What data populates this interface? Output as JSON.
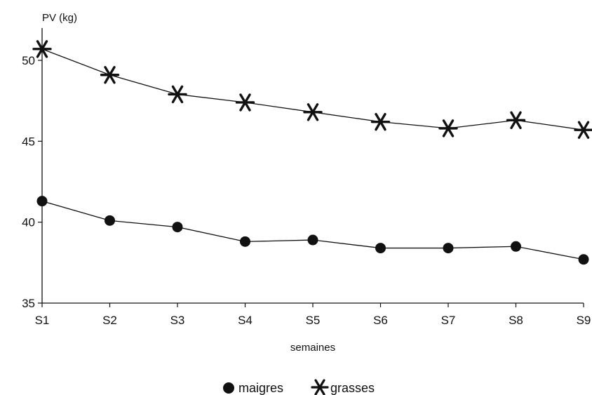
{
  "chart_data": {
    "type": "line",
    "title": "",
    "ylabel": "PV (kg)",
    "xlabel": "semaines",
    "categories": [
      "S1",
      "S2",
      "S3",
      "S4",
      "S5",
      "S6",
      "S7",
      "S8",
      "S9"
    ],
    "ylim": [
      35,
      52
    ],
    "yticks": [
      35,
      40,
      45,
      50
    ],
    "grid": false,
    "legend_position": "bottom-center",
    "series": [
      {
        "name": "maigres",
        "marker": "circle",
        "values": [
          41.3,
          40.1,
          39.7,
          38.8,
          38.9,
          38.4,
          38.4,
          38.5,
          37.7
        ],
        "color": "#111111"
      },
      {
        "name": "grasses",
        "marker": "asterisk",
        "values": [
          50.7,
          49.1,
          47.9,
          47.4,
          46.8,
          46.2,
          45.8,
          46.3,
          45.7
        ],
        "color": "#111111"
      }
    ]
  }
}
